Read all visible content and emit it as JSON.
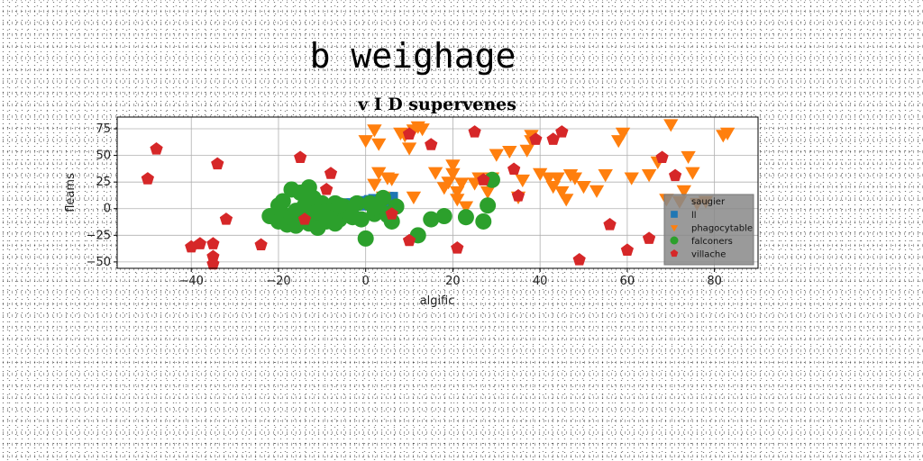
{
  "chart_data": {
    "type": "scatter",
    "suptitle": "b weighage",
    "title": "v I D supervenes",
    "xlabel": "algific",
    "ylabel": "fleams",
    "xlim": [
      -57,
      90
    ],
    "ylim": [
      -56,
      86
    ],
    "xticks": [
      -40,
      -20,
      0,
      20,
      40,
      60,
      80
    ],
    "yticks": [
      -50,
      -25,
      0,
      25,
      50,
      75
    ],
    "grid": true,
    "legend": {
      "location": "lower-right",
      "title": "saugier"
    },
    "series": [
      {
        "name": "ll",
        "marker": "square",
        "color": "#1f77b4",
        "points": [
          [
            -6,
            2
          ],
          [
            -5,
            3
          ],
          [
            -4,
            4
          ],
          [
            -3,
            4
          ],
          [
            -2,
            5
          ],
          [
            -1,
            6
          ],
          [
            0,
            6
          ],
          [
            1,
            7
          ],
          [
            2,
            8
          ],
          [
            3,
            8
          ],
          [
            4,
            9
          ],
          [
            5,
            10
          ],
          [
            6,
            10
          ],
          [
            2,
            6
          ],
          [
            4,
            7
          ],
          [
            -3,
            2
          ],
          [
            0,
            4
          ],
          [
            5,
            8
          ]
        ]
      },
      {
        "name": "phagocytable",
        "marker": "triangle-down",
        "color": "#ff7f0e",
        "points": [
          [
            0,
            65
          ],
          [
            2,
            75
          ],
          [
            3,
            62
          ],
          [
            2,
            24
          ],
          [
            3,
            35
          ],
          [
            5,
            30
          ],
          [
            4,
            12
          ],
          [
            6,
            29
          ],
          [
            8,
            72
          ],
          [
            9,
            70
          ],
          [
            10,
            58
          ],
          [
            11,
            75
          ],
          [
            12,
            78
          ],
          [
            11,
            12
          ],
          [
            13,
            76
          ],
          [
            16,
            35
          ],
          [
            18,
            21
          ],
          [
            19,
            26
          ],
          [
            20,
            42
          ],
          [
            20,
            34
          ],
          [
            21,
            17
          ],
          [
            21,
            10
          ],
          [
            22,
            25
          ],
          [
            23,
            3
          ],
          [
            25,
            25
          ],
          [
            26,
            30
          ],
          [
            28,
            17
          ],
          [
            29,
            30
          ],
          [
            30,
            52
          ],
          [
            33,
            55
          ],
          [
            35,
            12
          ],
          [
            36,
            28
          ],
          [
            37,
            56
          ],
          [
            38,
            70
          ],
          [
            38,
            65
          ],
          [
            40,
            34
          ],
          [
            42,
            30
          ],
          [
            43,
            22
          ],
          [
            44,
            30
          ],
          [
            45,
            17
          ],
          [
            46,
            10
          ],
          [
            47,
            33
          ],
          [
            48,
            30
          ],
          [
            50,
            22
          ],
          [
            53,
            18
          ],
          [
            55,
            33
          ],
          [
            58,
            65
          ],
          [
            59,
            72
          ],
          [
            61,
            30
          ],
          [
            65,
            33
          ],
          [
            67,
            45
          ],
          [
            69,
            10
          ],
          [
            70,
            80
          ],
          [
            72,
            8
          ],
          [
            73,
            18
          ],
          [
            74,
            50
          ],
          [
            75,
            35
          ],
          [
            76,
            6
          ],
          [
            78,
            8
          ],
          [
            82,
            70
          ],
          [
            83,
            72
          ]
        ]
      },
      {
        "name": "falconers",
        "marker": "circle",
        "color": "#2ca02c",
        "points": [
          [
            -22,
            -7
          ],
          [
            -20,
            -12
          ],
          [
            -19,
            -5
          ],
          [
            -18,
            -15
          ],
          [
            -17,
            -8
          ],
          [
            -16,
            -2
          ],
          [
            -15,
            -12
          ],
          [
            -14,
            3
          ],
          [
            -13,
            -14
          ],
          [
            -12,
            -7
          ],
          [
            -11,
            -18
          ],
          [
            -10,
            0
          ],
          [
            -9,
            -12
          ],
          [
            -8,
            -5
          ],
          [
            -7,
            5
          ],
          [
            -6,
            -10
          ],
          [
            -5,
            2
          ],
          [
            -4,
            -3
          ],
          [
            -3,
            -8
          ],
          [
            -2,
            5
          ],
          [
            -1,
            -10
          ],
          [
            0,
            -28
          ],
          [
            1,
            5
          ],
          [
            2,
            -5
          ],
          [
            3,
            0
          ],
          [
            4,
            10
          ],
          [
            5,
            -6
          ],
          [
            6,
            -12
          ],
          [
            -17,
            18
          ],
          [
            -15,
            15
          ],
          [
            -13,
            20
          ],
          [
            -12,
            10
          ],
          [
            -19,
            7
          ],
          [
            -10,
            5
          ],
          [
            -8,
            -2
          ],
          [
            -6,
            3
          ],
          [
            -9,
            -8
          ],
          [
            -16,
            -16
          ],
          [
            -20,
            3
          ],
          [
            -7,
            -14
          ],
          [
            12,
            -25
          ],
          [
            15,
            -10
          ],
          [
            18,
            -7
          ],
          [
            23,
            -8
          ],
          [
            27,
            -12
          ],
          [
            28,
            3
          ],
          [
            29,
            27
          ],
          [
            5,
            -5
          ],
          [
            7,
            2
          ],
          [
            -11,
            -3
          ]
        ]
      },
      {
        "name": "villache",
        "marker": "pentagon",
        "color": "#d62728",
        "points": [
          [
            -50,
            28
          ],
          [
            -48,
            56
          ],
          [
            -40,
            -36
          ],
          [
            -38,
            -33
          ],
          [
            -35,
            -45
          ],
          [
            -35,
            -52
          ],
          [
            -35,
            -33
          ],
          [
            -34,
            42
          ],
          [
            -32,
            -10
          ],
          [
            -24,
            -34
          ],
          [
            -15,
            48
          ],
          [
            -14,
            -10
          ],
          [
            -9,
            18
          ],
          [
            -8,
            33
          ],
          [
            6,
            -5
          ],
          [
            10,
            70
          ],
          [
            10,
            -30
          ],
          [
            15,
            60
          ],
          [
            21,
            -37
          ],
          [
            25,
            72
          ],
          [
            27,
            27
          ],
          [
            34,
            37
          ],
          [
            35,
            12
          ],
          [
            39,
            65
          ],
          [
            43,
            65
          ],
          [
            45,
            72
          ],
          [
            49,
            -48
          ],
          [
            56,
            -15
          ],
          [
            60,
            -39
          ],
          [
            65,
            -28
          ],
          [
            68,
            48
          ],
          [
            71,
            31
          ]
        ]
      }
    ]
  }
}
